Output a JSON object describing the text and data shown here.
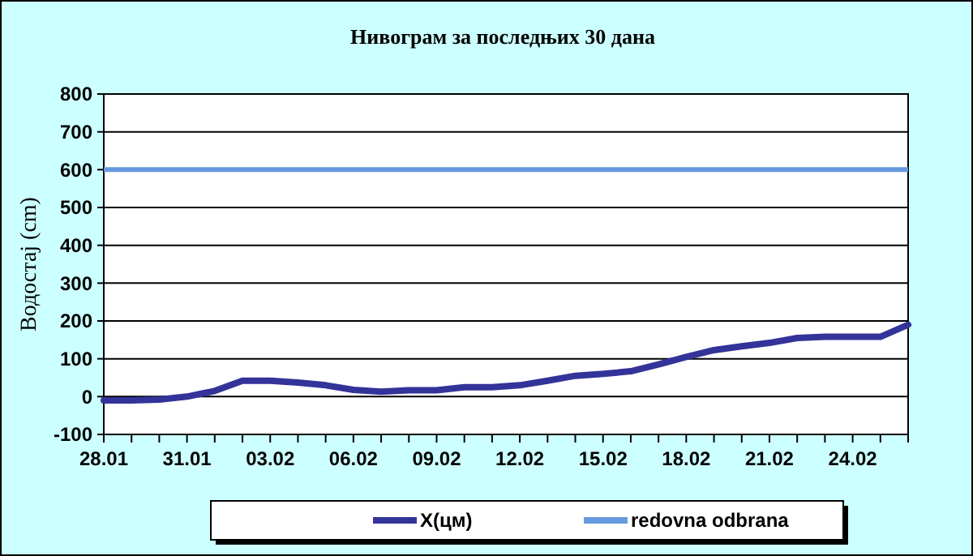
{
  "chart_data": {
    "type": "line",
    "title": "Нивограм за последњих 30 дана",
    "ylabel": "Водостај (cm)",
    "categories": [
      "28.01",
      null,
      null,
      "31.01",
      null,
      null,
      "03.02",
      null,
      null,
      "06.02",
      null,
      null,
      "09.02",
      null,
      null,
      "12.02",
      null,
      null,
      "15.02",
      null,
      null,
      "18.02",
      null,
      null,
      "21.02",
      null,
      null,
      "24.02",
      null,
      null
    ],
    "series": [
      {
        "name": "X(цм)",
        "color": "#333399",
        "values": [
          -10,
          -10,
          -8,
          0,
          15,
          42,
          42,
          37,
          30,
          18,
          13,
          17,
          17,
          25,
          25,
          30,
          42,
          55,
          60,
          67,
          85,
          105,
          123,
          133,
          142,
          155,
          158,
          158,
          158,
          190
        ]
      }
    ],
    "ref_lines": [
      {
        "axis": "y",
        "value": 600,
        "label": "redovna odbrana",
        "color": "#6699dd"
      }
    ],
    "ylim": [
      -100,
      800
    ],
    "yticks": [
      -100,
      0,
      100,
      200,
      300,
      400,
      500,
      600,
      700,
      800
    ],
    "grid": "y",
    "legend": "bottom",
    "marker": "none",
    "line_style": "solid"
  }
}
